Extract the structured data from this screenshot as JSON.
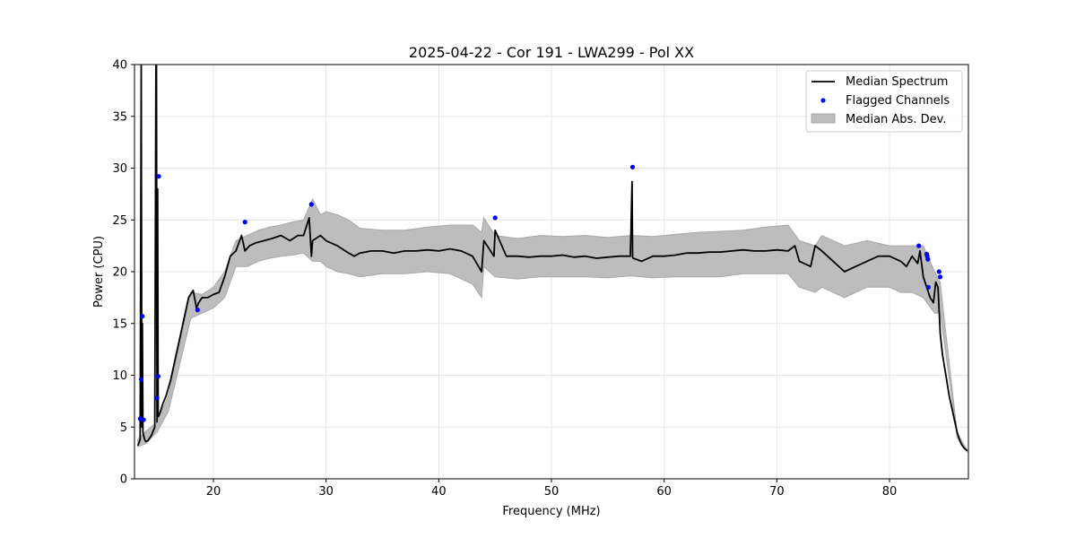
{
  "chart_data": {
    "type": "line",
    "title": "2025-04-22 - Cor 191 - LWA299 - Pol XX",
    "xlabel": "Frequency (MHz)",
    "ylabel": "Power (CPU)",
    "xlim": [
      13,
      87
    ],
    "ylim": [
      0,
      40
    ],
    "xticks": [
      20,
      30,
      40,
      50,
      60,
      70,
      80
    ],
    "yticks": [
      0,
      5,
      10,
      15,
      20,
      25,
      30,
      35,
      40
    ],
    "xtick_labels": [
      "20",
      "30",
      "40",
      "50",
      "60",
      "70",
      "80"
    ],
    "ytick_labels": [
      "0",
      "5",
      "10",
      "15",
      "20",
      "25",
      "30",
      "35",
      "40"
    ],
    "grid": true,
    "legend_position": "top-right",
    "legend": [
      "Median Spectrum",
      "Flagged Channels",
      "Median Abs. Dev."
    ],
    "colors": {
      "median": "#000000",
      "flagged": "#0000ff",
      "mad_fill": "#bdbdbd",
      "mad_edge": "#a8a8a8",
      "grid": "#e6e6e6"
    },
    "series": [
      {
        "name": "Median Spectrum",
        "x": [
          13.3,
          13.5,
          13.6,
          13.65,
          13.7,
          13.75,
          13.8,
          13.9,
          14.0,
          14.2,
          14.5,
          14.8,
          14.9,
          14.95,
          15.0,
          15.05,
          15.1,
          15.2,
          15.3,
          15.5,
          15.8,
          16.2,
          16.6,
          17.0,
          17.4,
          17.8,
          18.2,
          18.5,
          18.7,
          19.0,
          19.5,
          20.0,
          20.5,
          21.0,
          21.5,
          22.0,
          22.5,
          22.8,
          23.2,
          23.8,
          24.5,
          25.2,
          26.0,
          26.8,
          27.5,
          28.0,
          28.5,
          28.7,
          28.8,
          29.5,
          30.0,
          31.0,
          32.0,
          32.5,
          33.0,
          34.0,
          35.0,
          36.0,
          37.0,
          38.0,
          39.0,
          40.0,
          41.0,
          42.0,
          43.0,
          43.8,
          44.0,
          44.9,
          45.0,
          46.0,
          47.0,
          48.0,
          49.0,
          50.0,
          51.0,
          52.0,
          53.0,
          54.0,
          55.0,
          56.0,
          57.0,
          57.15,
          57.2,
          57.25,
          58.0,
          59.0,
          60.0,
          61.0,
          62.0,
          63.0,
          64.0,
          65.0,
          66.0,
          67.0,
          68.0,
          69.0,
          70.0,
          71.0,
          71.6,
          72.0,
          73.0,
          73.4,
          74.0,
          75.0,
          76.0,
          77.0,
          78.0,
          79.0,
          80.0,
          81.0,
          81.5,
          82.0,
          82.5,
          82.7,
          83.0,
          83.3,
          83.6,
          83.9,
          84.1,
          84.3,
          84.5,
          84.7,
          85.0,
          85.3,
          85.6,
          85.8,
          86.0,
          86.2,
          86.4,
          86.6,
          86.9
        ],
        "y": [
          3.2,
          3.8,
          40,
          5.0,
          15.0,
          4.5,
          4.2,
          3.8,
          3.6,
          3.7,
          4.2,
          5.0,
          40,
          40,
          5.5,
          28.0,
          6.0,
          6.2,
          6.5,
          7.2,
          8.0,
          9.5,
          11.5,
          13.5,
          15.5,
          17.5,
          18.2,
          16.5,
          17.0,
          17.5,
          17.5,
          17.8,
          18.0,
          19.5,
          21.5,
          22.0,
          23.5,
          22.0,
          22.5,
          22.8,
          23.0,
          23.2,
          23.5,
          23.0,
          23.5,
          23.5,
          25.2,
          21.5,
          23.0,
          23.5,
          23.0,
          22.5,
          21.8,
          21.5,
          21.8,
          22.0,
          22.0,
          21.8,
          22.0,
          22.0,
          22.1,
          22.0,
          22.2,
          22.0,
          21.5,
          20.0,
          23.0,
          21.5,
          24.0,
          21.5,
          21.5,
          21.4,
          21.5,
          21.5,
          21.6,
          21.4,
          21.5,
          21.3,
          21.4,
          21.5,
          21.5,
          28.7,
          21.4,
          21.3,
          21.0,
          21.5,
          21.5,
          21.6,
          21.8,
          21.8,
          21.9,
          21.9,
          22.0,
          22.1,
          22.0,
          22.0,
          22.1,
          22.0,
          22.5,
          21.0,
          20.5,
          22.5,
          22.0,
          21.0,
          20.0,
          20.5,
          21.0,
          21.5,
          21.5,
          21.0,
          20.5,
          21.5,
          20.8,
          22.0,
          19.5,
          18.5,
          17.5,
          17.0,
          19.0,
          18.5,
          14.0,
          12.0,
          10.0,
          8.0,
          6.5,
          5.5,
          4.5,
          3.8,
          3.3,
          3.0,
          2.7
        ]
      },
      {
        "name": "Median Abs. Dev.",
        "x": [
          13.3,
          14.0,
          15.0,
          16.0,
          17.0,
          18.0,
          19.0,
          20.0,
          21.0,
          22.0,
          23.0,
          24.0,
          25.0,
          26.0,
          27.0,
          28.0,
          28.8,
          29.5,
          30.0,
          31.0,
          32.0,
          33.0,
          35.0,
          37.0,
          39.0,
          41.0,
          42.0,
          43.0,
          43.8,
          44.0,
          45.0,
          47.0,
          49.0,
          51.0,
          53.0,
          55.0,
          57.0,
          59.0,
          61.0,
          63.0,
          65.0,
          67.0,
          69.0,
          71.0,
          72.0,
          73.4,
          74.0,
          76.0,
          78.0,
          80.0,
          81.0,
          82.0,
          83.0,
          84.0,
          84.5,
          85.0,
          86.0,
          86.9
        ],
        "upper": [
          3.8,
          4.6,
          5.5,
          8.0,
          13.0,
          18.0,
          17.8,
          18.5,
          20.0,
          23.0,
          23.5,
          24.0,
          24.3,
          24.5,
          24.8,
          25.0,
          27.0,
          25.5,
          25.8,
          25.5,
          25.0,
          24.2,
          24.0,
          24.0,
          24.3,
          24.5,
          24.5,
          24.5,
          23.8,
          25.2,
          23.5,
          23.2,
          23.5,
          23.4,
          23.5,
          23.3,
          23.5,
          23.4,
          23.6,
          23.8,
          23.9,
          24.0,
          24.3,
          24.5,
          23.0,
          22.5,
          23.5,
          22.5,
          23.0,
          22.5,
          22.5,
          22.5,
          22.5,
          20.0,
          19.0,
          14.0,
          4.5,
          2.7
        ],
        "lower": [
          3.1,
          3.4,
          4.5,
          6.5,
          11.0,
          15.5,
          16.0,
          16.5,
          17.5,
          20.5,
          20.5,
          21.0,
          21.3,
          21.5,
          21.6,
          21.8,
          21.0,
          21.0,
          20.5,
          20.0,
          19.8,
          19.5,
          19.8,
          19.8,
          20.0,
          19.8,
          19.3,
          18.8,
          17.5,
          20.5,
          19.5,
          19.3,
          19.5,
          19.5,
          19.5,
          19.4,
          19.6,
          19.4,
          19.5,
          19.5,
          19.5,
          19.8,
          19.8,
          19.8,
          18.5,
          18.0,
          18.5,
          17.5,
          18.5,
          18.5,
          18.0,
          18.0,
          17.5,
          16.0,
          16.0,
          12.0,
          4.0,
          2.6
        ]
      },
      {
        "name": "Flagged Channels",
        "x": [
          13.5,
          13.6,
          13.7,
          13.8,
          15.0,
          15.1,
          15.15,
          18.6,
          22.8,
          28.7,
          45.0,
          57.2,
          82.6,
          83.3,
          83.35,
          83.4,
          83.45,
          84.4,
          84.5
        ],
        "y": [
          5.8,
          9.6,
          15.7,
          5.7,
          7.8,
          9.9,
          29.2,
          16.3,
          24.8,
          26.5,
          25.2,
          30.1,
          22.5,
          21.7,
          21.5,
          21.2,
          18.5,
          20.0,
          19.5
        ]
      }
    ]
  }
}
